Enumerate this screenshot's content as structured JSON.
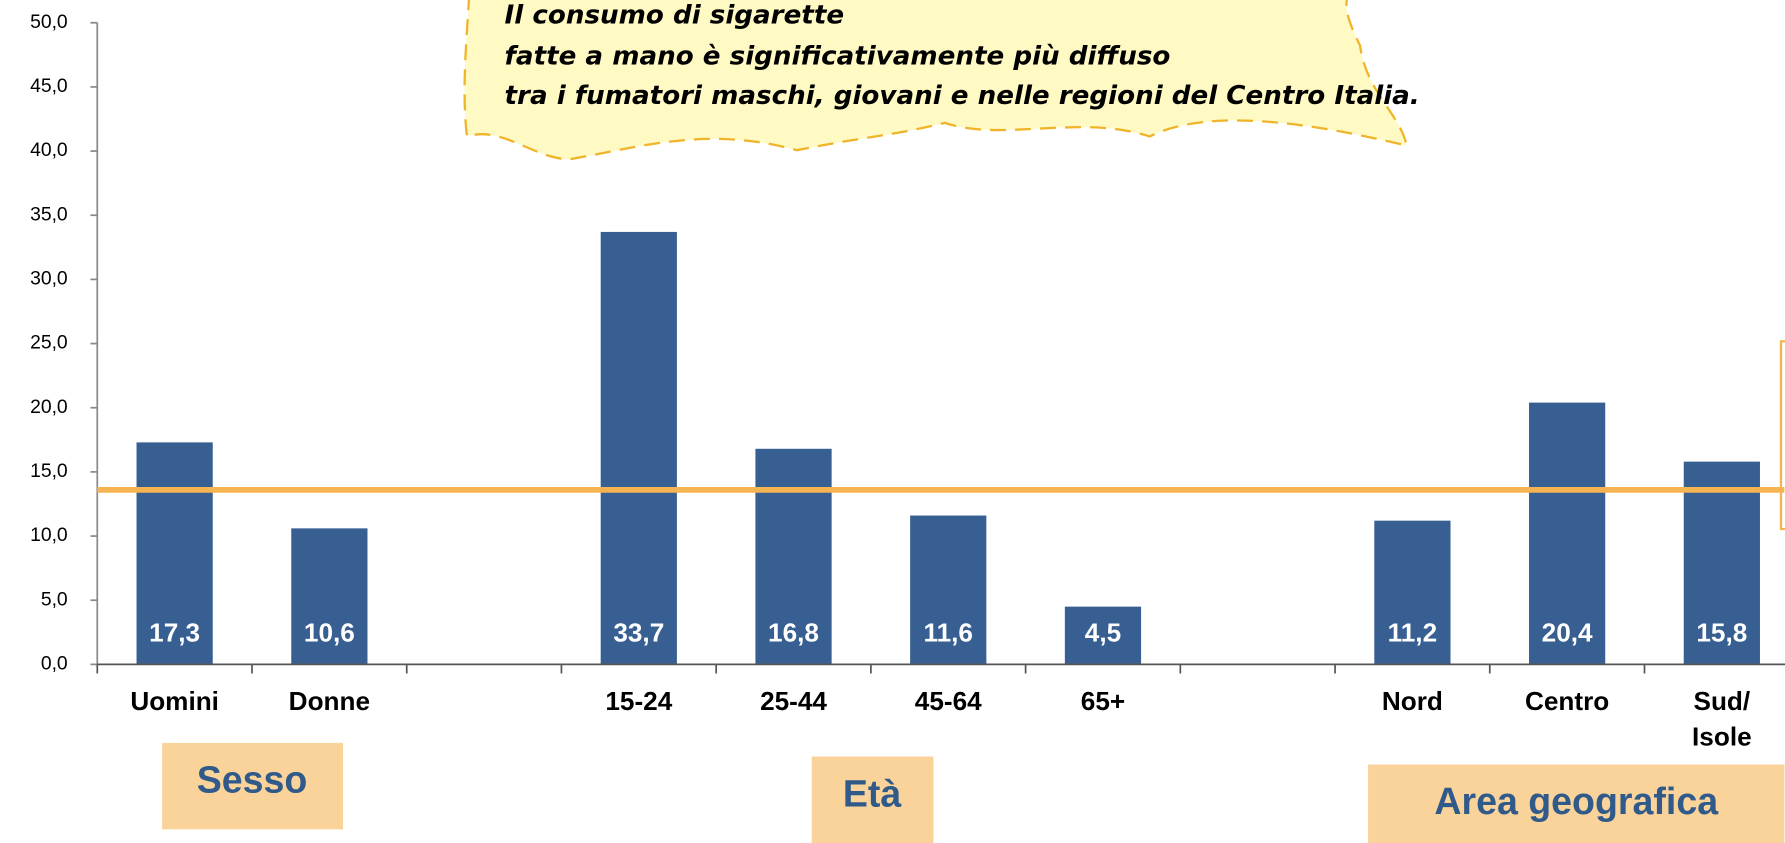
{
  "chart_data": {
    "type": "bar",
    "categories": [
      "Uomini",
      "Donne",
      null,
      "15-24",
      "25-44",
      "45-64",
      "65+",
      null,
      "Nord",
      "Centro",
      "Sud/\nIsole"
    ],
    "values": [
      17.3,
      10.6,
      null,
      33.7,
      16.8,
      11.6,
      4.5,
      null,
      11.2,
      20.4,
      15.8
    ],
    "value_labels": [
      "17,3",
      "10,6",
      null,
      "33,7",
      "16,8",
      "11,6",
      "4,5",
      null,
      "11,2",
      "20,4",
      "15,8"
    ],
    "color": "#375f92",
    "ylim": [
      0,
      50
    ],
    "yticks": [
      {
        "value": 0,
        "label": "0,0"
      },
      {
        "value": 5,
        "label": "5,0"
      },
      {
        "value": 10,
        "label": "10,0"
      },
      {
        "value": 15,
        "label": "15,0"
      },
      {
        "value": 20,
        "label": "20,0"
      },
      {
        "value": 25,
        "label": "25,0"
      },
      {
        "value": 30,
        "label": "30,0"
      },
      {
        "value": 35,
        "label": "35,0"
      },
      {
        "value": 40,
        "label": "40,0"
      },
      {
        "value": 45,
        "label": "45,0"
      },
      {
        "value": 50,
        "label": "50,0"
      }
    ],
    "reference_line": {
      "value": 13.6,
      "color": "#f5b451"
    },
    "groups": [
      "Sesso",
      "Età",
      "Area geografica"
    ],
    "annotation": [
      "Il consumo di sigarette",
      "fatte a mano è significativamente più diffuso",
      "tra i fumatori maschi, giovani e nelle regioni del Centro Italia."
    ]
  }
}
